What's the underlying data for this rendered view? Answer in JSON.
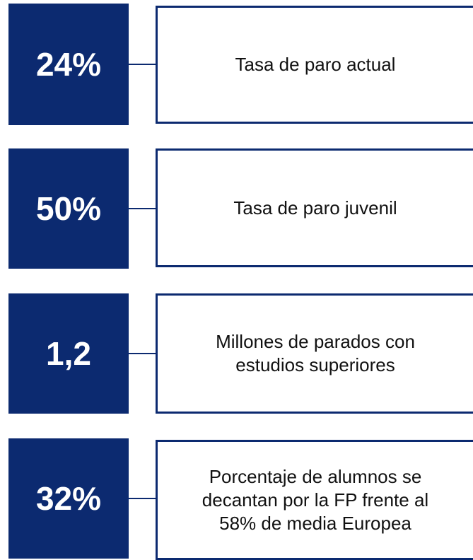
{
  "items": [
    {
      "value": "24%",
      "lines": [
        "Tasa de paro actual"
      ]
    },
    {
      "value": "50%",
      "lines": [
        "Tasa de paro juvenil"
      ]
    },
    {
      "value": "1,2",
      "lines": [
        "Millones de parados con",
        "estudios superiores"
      ]
    },
    {
      "value": "32%",
      "lines": [
        "Porcentaje de alumnos se",
        "decantan por la FP frente al",
        "58% de media Europea"
      ]
    }
  ]
}
